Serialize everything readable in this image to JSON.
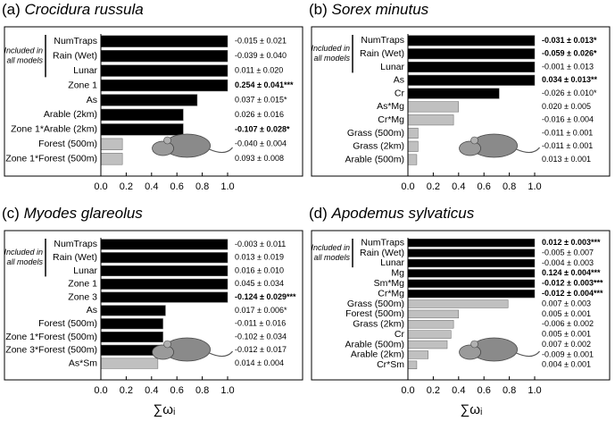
{
  "chart_data": [
    {
      "type": "barh",
      "label": "(a)",
      "title": "Crocidura russula",
      "annotation": [
        "Included in",
        "all models"
      ],
      "categories": [
        "NumTraps",
        "Rain (Wet)",
        "Lunar",
        "Zone 1",
        "As",
        "Arable (2km)",
        "Zone 1*Arable (2km)",
        "Forest (500m)",
        "Zone 1*Forest (500m)"
      ],
      "values": [
        1.0,
        1.0,
        1.0,
        1.0,
        0.76,
        0.65,
        0.65,
        0.17,
        0.17
      ],
      "bar_colors": [
        "#000000",
        "#000000",
        "#000000",
        "#000000",
        "#000000",
        "#000000",
        "#000000",
        "#c0c0c0",
        "#c0c0c0"
      ],
      "estimates": [
        "-0.015 ± 0.021",
        "-0.039 ± 0.040",
        "0.011 ± 0.020",
        "0.254 ± 0.041***",
        "0.037 ± 0.015*",
        "0.026 ± 0.016",
        "-0.107 ± 0.028*",
        "-0.040 ± 0.004",
        "0.093 ± 0.008"
      ],
      "estimate_bold": [
        false,
        false,
        false,
        true,
        false,
        false,
        true,
        false,
        false
      ],
      "xlim": [
        0,
        1.0
      ],
      "xticks": [
        {
          "value": 0,
          "label": "0.0"
        },
        0.2,
        0.4,
        0.6,
        0.8,
        {
          "value": 1,
          "label": "1.0"
        }
      ]
    },
    {
      "type": "barh",
      "label": "(b)",
      "title": "Sorex minutus",
      "annotation": [
        "Included in",
        "all models"
      ],
      "categories": [
        "NumTraps",
        "Rain (Wet)",
        "Lunar",
        "As",
        "Cr",
        "As*Mg",
        "Cr*Mg",
        "Grass (500m)",
        "Grass (2km)",
        "Arable (500m)"
      ],
      "values": [
        1.0,
        1.0,
        1.0,
        1.0,
        0.72,
        0.4,
        0.36,
        0.08,
        0.08,
        0.07
      ],
      "bar_colors": [
        "#000000",
        "#000000",
        "#000000",
        "#000000",
        "#000000",
        "#c0c0c0",
        "#c0c0c0",
        "#c0c0c0",
        "#c0c0c0",
        "#c0c0c0"
      ],
      "estimates": [
        "-0.031 ± 0.013*",
        "-0.059 ± 0.026*",
        "-0.001 ± 0.013",
        "0.034 ± 0.013**",
        "-0.026 ± 0.010*",
        "0.020 ± 0.005",
        "-0.016 ± 0.004",
        "-0.011 ± 0.001",
        "-0.011 ± 0.001",
        "0.013 ± 0.001"
      ],
      "estimate_bold": [
        true,
        true,
        false,
        true,
        false,
        false,
        false,
        false,
        false,
        false
      ],
      "xlim": [
        0,
        1.0
      ],
      "xticks": [
        {
          "value": 0,
          "label": "0.0"
        },
        0.2,
        0.4,
        0.6,
        0.8,
        {
          "value": 1,
          "label": "1.0"
        }
      ]
    },
    {
      "type": "barh",
      "label": "(c)",
      "title": "Myodes glareolus",
      "annotation": [
        "Included in",
        "all models"
      ],
      "categories": [
        "NumTraps",
        "Rain (Wet)",
        "Lunar",
        "Zone 1",
        "Zone 3",
        "As",
        "Forest (500m)",
        "Zone 1*Forest (500m)",
        "Zone 3*Forest (500m)",
        "As*Sm"
      ],
      "values": [
        1.0,
        1.0,
        1.0,
        1.0,
        1.0,
        0.51,
        0.49,
        0.49,
        0.49,
        0.45
      ],
      "bar_colors": [
        "#000000",
        "#000000",
        "#000000",
        "#000000",
        "#000000",
        "#000000",
        "#000000",
        "#000000",
        "#000000",
        "#c0c0c0"
      ],
      "estimates": [
        "-0.003 ± 0.011",
        "0.013 ± 0.019",
        "0.016 ± 0.010",
        "0.045 ± 0.034",
        "-0.124 ± 0.029***",
        "0.017 ± 0.006*",
        "-0.011 ± 0.016",
        "-0.102 ± 0.034",
        "-0.012 ± 0.017",
        "0.014 ± 0.004"
      ],
      "estimate_bold": [
        false,
        false,
        false,
        false,
        true,
        false,
        false,
        false,
        false,
        false
      ],
      "xlim": [
        0,
        1.0
      ],
      "xticks": [
        {
          "value": 0,
          "label": "0.0"
        },
        0.2,
        0.4,
        0.6,
        0.8,
        {
          "value": 1,
          "label": "1.0"
        }
      ],
      "xlabel": "∑ωᵢ"
    },
    {
      "type": "barh",
      "label": "(d)",
      "title": "Apodemus sylvaticus",
      "annotation": [
        "Included in",
        "all models"
      ],
      "categories": [
        "NumTraps",
        "Rain (Wet)",
        "Lunar",
        "Mg",
        "Sm*Mg",
        "Cr*Mg",
        "Grass (500m)",
        "Forest (500m)",
        "Grass (2km)",
        "Cr",
        "Arable (500m)",
        "Arable (2km)",
        "Cr*Sm"
      ],
      "values": [
        1.0,
        1.0,
        1.0,
        1.0,
        1.0,
        1.0,
        0.79,
        0.4,
        0.36,
        0.34,
        0.31,
        0.16,
        0.07
      ],
      "bar_colors": [
        "#000000",
        "#000000",
        "#000000",
        "#000000",
        "#000000",
        "#000000",
        "#c0c0c0",
        "#c0c0c0",
        "#c0c0c0",
        "#c0c0c0",
        "#c0c0c0",
        "#c0c0c0",
        "#c0c0c0"
      ],
      "estimates": [
        "0.012 ± 0.003***",
        "-0.005 ± 0.007",
        "-0.004 ± 0.003",
        "0.124 ± 0.004***",
        "-0.012 ± 0.003***",
        "-0.012 ± 0.004***",
        "0.007 ± 0.003",
        "0.005 ± 0.001",
        "-0.006 ± 0.002",
        "0.005 ± 0.001",
        "0.007 ± 0.002",
        "-0.009 ± 0.001",
        "0.004 ± 0.001"
      ],
      "estimate_bold": [
        true,
        false,
        false,
        true,
        true,
        true,
        false,
        false,
        false,
        false,
        false,
        false,
        false
      ],
      "xlim": [
        0,
        1.0
      ],
      "xticks": [
        {
          "value": 0,
          "label": "0.0"
        },
        0.2,
        0.4,
        0.6,
        0.8,
        {
          "value": 1,
          "label": "1.0"
        }
      ],
      "xlabel": "∑ωᵢ"
    }
  ]
}
